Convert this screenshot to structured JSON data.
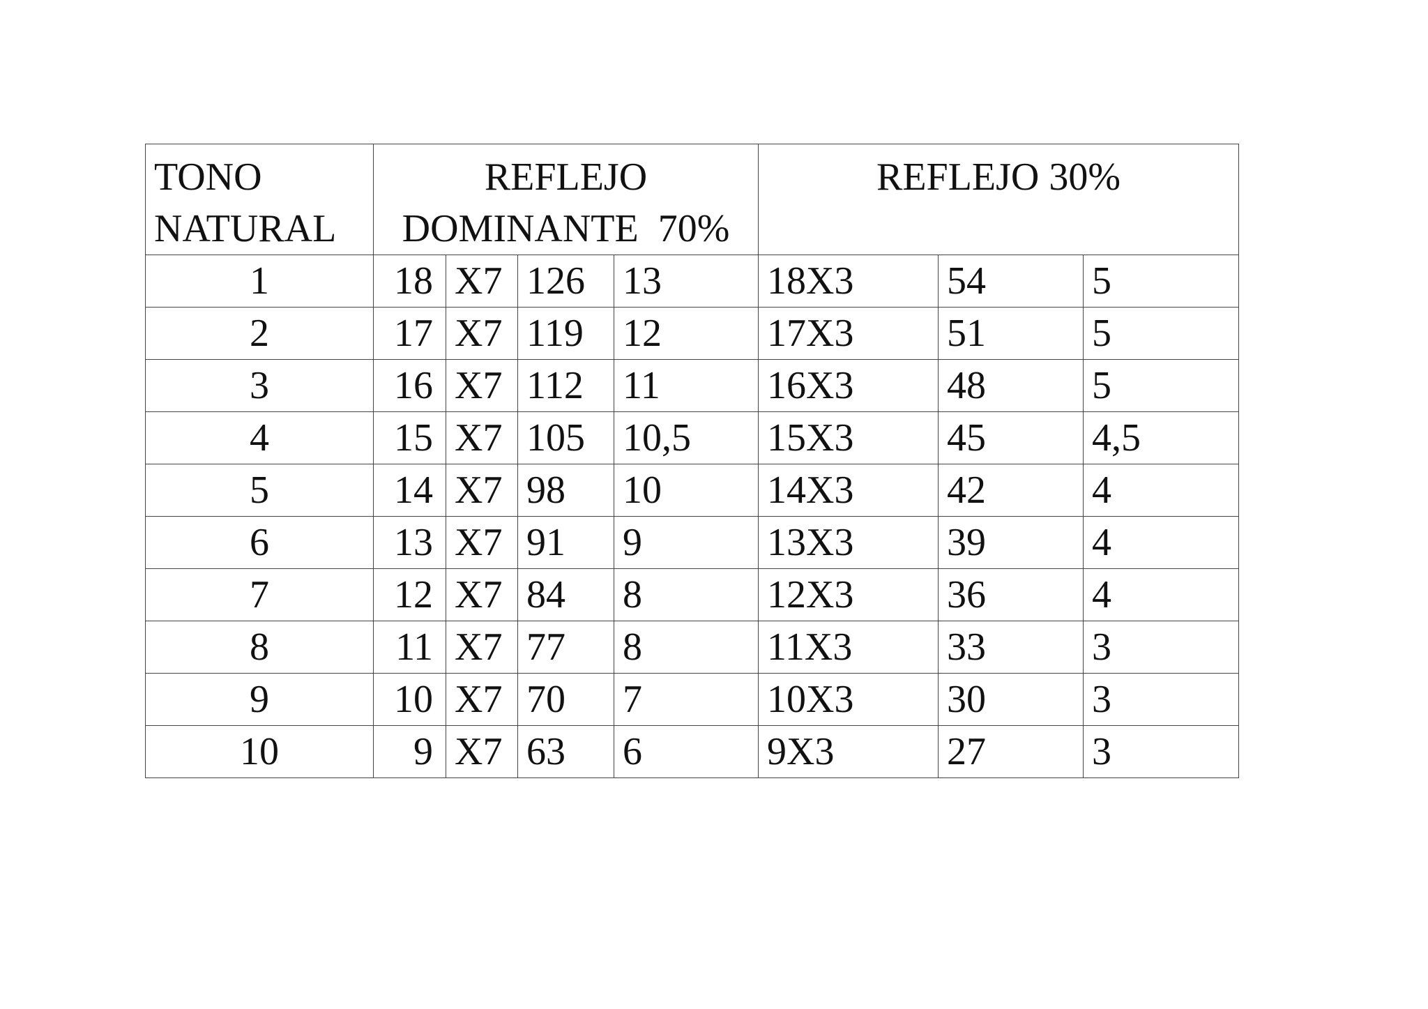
{
  "table": {
    "header": {
      "tono": [
        "TONO",
        "NATURAL"
      ],
      "dominante": [
        "REFLEJO",
        "DOMINANTE  70%"
      ],
      "reflejo": "REFLEJO 30%"
    },
    "rows": [
      [
        "1",
        "18",
        "X7",
        "126",
        "13",
        "18X3",
        "54",
        "5"
      ],
      [
        "2",
        "17",
        "X7",
        "119",
        "12",
        "17X3",
        "51",
        "5"
      ],
      [
        "3",
        "16",
        "X7",
        "112",
        "11",
        "16X3",
        "48",
        "5"
      ],
      [
        "4",
        "15",
        "X7",
        "105",
        "10,5",
        "15X3",
        "45",
        "4,5"
      ],
      [
        "5",
        "14",
        "X7",
        "98",
        "10",
        "14X3",
        "42",
        "4"
      ],
      [
        "6",
        "13",
        "X7",
        "91",
        "9",
        "13X3",
        "39",
        "4"
      ],
      [
        "7",
        "12",
        "X7",
        "84",
        "8",
        "12X3",
        "36",
        "4"
      ],
      [
        "8",
        "11",
        "X7",
        "77",
        "8",
        "11X3",
        "33",
        "3"
      ],
      [
        "9",
        "10",
        "X7",
        "70",
        "7",
        "10X3",
        "30",
        "3"
      ],
      [
        "10",
        "9",
        "X7",
        "63",
        "6",
        "9X3",
        "27",
        "3"
      ]
    ]
  }
}
